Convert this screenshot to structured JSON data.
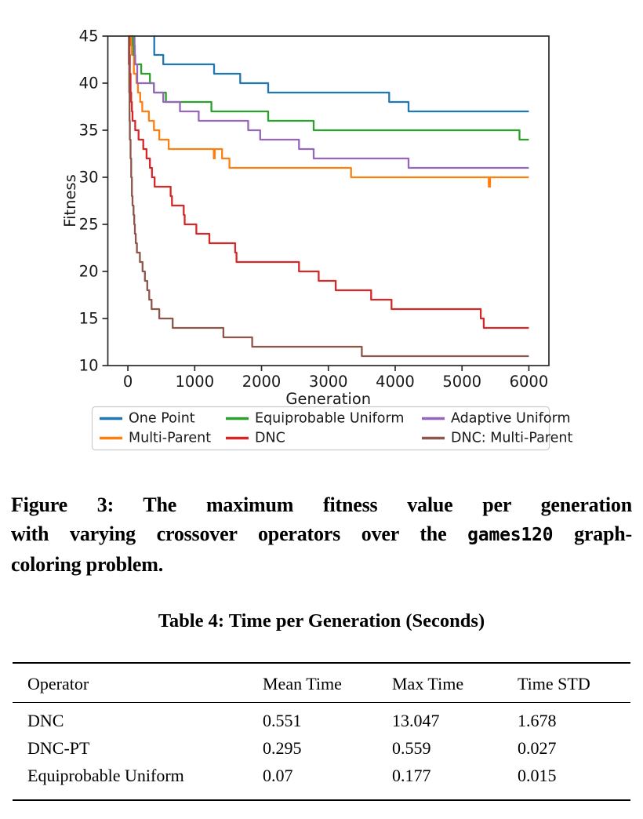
{
  "chart_data": {
    "type": "line",
    "line_style": "step-post",
    "title": "",
    "xlabel": "Generation",
    "ylabel": "Fitness",
    "xlim": [
      -300,
      6300
    ],
    "ylim": [
      10,
      45
    ],
    "xticks": [
      0,
      1000,
      2000,
      3000,
      4000,
      5000,
      6000
    ],
    "yticks": [
      10,
      15,
      20,
      25,
      30,
      35,
      40,
      45
    ],
    "grid": false,
    "frame_color": "#2b2b2b",
    "legend_position": "below-chart-3-columns",
    "series": [
      {
        "name": "One Point",
        "color": "#1f77b4",
        "points": [
          [
            390,
            45
          ],
          [
            395,
            43
          ],
          [
            530,
            42
          ],
          [
            1290,
            41
          ],
          [
            1680,
            40
          ],
          [
            2100,
            39
          ],
          [
            3910,
            38
          ],
          [
            4200,
            37
          ],
          [
            6000,
            37
          ]
        ]
      },
      {
        "name": "Multi-Parent",
        "color": "#ff7f0e",
        "points": [
          [
            40,
            45
          ],
          [
            50,
            44
          ],
          [
            60,
            43
          ],
          [
            90,
            41
          ],
          [
            130,
            40
          ],
          [
            150,
            39
          ],
          [
            185,
            38
          ],
          [
            215,
            37
          ],
          [
            315,
            36
          ],
          [
            390,
            35
          ],
          [
            470,
            34
          ],
          [
            610,
            33
          ],
          [
            1285,
            32
          ],
          [
            1300,
            33
          ],
          [
            1410,
            32
          ],
          [
            1520,
            31
          ],
          [
            3340,
            30
          ],
          [
            5400,
            29
          ],
          [
            5420,
            30
          ],
          [
            6000,
            30
          ]
        ]
      },
      {
        "name": "Equiprobable Uniform",
        "color": "#2ca02c",
        "points": [
          [
            60,
            45
          ],
          [
            75,
            44
          ],
          [
            85,
            43
          ],
          [
            110,
            42
          ],
          [
            200,
            41
          ],
          [
            330,
            40
          ],
          [
            390,
            39
          ],
          [
            570,
            38
          ],
          [
            1250,
            37
          ],
          [
            2100,
            36
          ],
          [
            2780,
            35
          ],
          [
            5860,
            34
          ],
          [
            6000,
            34
          ]
        ]
      },
      {
        "name": "DNC",
        "color": "#d62728",
        "points": [
          [
            20,
            45
          ],
          [
            25,
            43
          ],
          [
            30,
            41
          ],
          [
            40,
            39
          ],
          [
            50,
            38
          ],
          [
            60,
            37
          ],
          [
            70,
            36
          ],
          [
            110,
            35
          ],
          [
            160,
            34
          ],
          [
            230,
            33
          ],
          [
            280,
            32
          ],
          [
            330,
            31
          ],
          [
            360,
            30
          ],
          [
            400,
            29
          ],
          [
            640,
            28
          ],
          [
            660,
            27
          ],
          [
            836,
            26
          ],
          [
            850,
            25
          ],
          [
            1025,
            24
          ],
          [
            1220,
            23
          ],
          [
            1605,
            22
          ],
          [
            1625,
            21
          ],
          [
            2560,
            20
          ],
          [
            2855,
            19
          ],
          [
            3110,
            18
          ],
          [
            3640,
            17
          ],
          [
            3945,
            16
          ],
          [
            5280,
            15
          ],
          [
            5325,
            14
          ],
          [
            6000,
            14
          ]
        ]
      },
      {
        "name": "Adaptive Uniform",
        "color": "#9467bd",
        "points": [
          [
            95,
            45
          ],
          [
            100,
            44
          ],
          [
            105,
            43
          ],
          [
            110,
            42
          ],
          [
            140,
            40
          ],
          [
            390,
            39
          ],
          [
            530,
            38
          ],
          [
            780,
            37
          ],
          [
            1060,
            36
          ],
          [
            1800,
            35
          ],
          [
            1980,
            34
          ],
          [
            2560,
            33
          ],
          [
            2780,
            32
          ],
          [
            4200,
            31
          ],
          [
            6000,
            31
          ]
        ]
      },
      {
        "name": "DNC: Multi-Parent",
        "color": "#8c564b",
        "points": [
          [
            10,
            45
          ],
          [
            15,
            42
          ],
          [
            20,
            39
          ],
          [
            25,
            36
          ],
          [
            30,
            34
          ],
          [
            40,
            32
          ],
          [
            50,
            30
          ],
          [
            60,
            28
          ],
          [
            70,
            27
          ],
          [
            85,
            26
          ],
          [
            95,
            25
          ],
          [
            105,
            24
          ],
          [
            118,
            23
          ],
          [
            135,
            22
          ],
          [
            180,
            21
          ],
          [
            220,
            20
          ],
          [
            255,
            19
          ],
          [
            290,
            18
          ],
          [
            320,
            17
          ],
          [
            355,
            16
          ],
          [
            470,
            15
          ],
          [
            670,
            14
          ],
          [
            1430,
            13
          ],
          [
            1860,
            12
          ],
          [
            3500,
            11
          ],
          [
            6000,
            11
          ]
        ]
      }
    ]
  },
  "caption": {
    "line1": "Figure 3: The maximum fitness value per generation",
    "line2_pre": "with varying crossover operators over the ",
    "line2_code": "games120",
    "line2_post": " graph-",
    "line3": "coloring problem."
  },
  "table_title": "Table 4: Time per Generation (Seconds)",
  "table": {
    "headers": [
      "Operator",
      "Mean Time",
      "Max Time",
      "Time STD"
    ],
    "rows": [
      [
        "DNC",
        "0.551",
        "13.047",
        "1.678"
      ],
      [
        "DNC-PT",
        "0.295",
        "0.559",
        "0.027"
      ],
      [
        "Equiprobable Uniform",
        "0.07",
        "0.177",
        "0.015"
      ]
    ]
  }
}
